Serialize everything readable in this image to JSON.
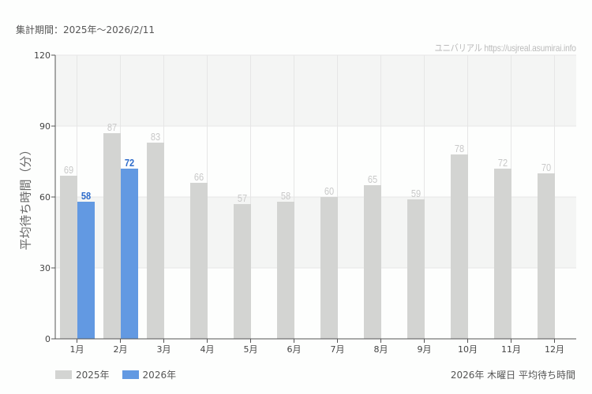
{
  "header": {
    "period": "集計期間：2025年～2026/2/11",
    "credit": "ユニバリアル  https://usjreal.asumirai.info"
  },
  "footer": {
    "title": "2026年 木曜日 平均待ち時間"
  },
  "legend": [
    {
      "label": "2025年",
      "color": "#d3d4d2"
    },
    {
      "label": "2026年",
      "color": "#6299e2"
    }
  ],
  "colors": {
    "series_2025": "#d3d4d2",
    "series_2026": "#6299e2",
    "label_2025": "#c8c8c8",
    "label_2026": "#2e6ccb",
    "band": "#f4f5f4",
    "grid": "#e6e6e6",
    "axis": "#555555"
  },
  "chart_data": {
    "type": "bar",
    "title": "2026年 木曜日 平均待ち時間",
    "subtitle": "集計期間：2025年～2026/2/11",
    "xlabel": "",
    "ylabel": "平均待ち時間（分）",
    "ylim": [
      0,
      120
    ],
    "yticks": [
      0,
      30,
      60,
      90,
      120
    ],
    "categories": [
      "1月",
      "2月",
      "3月",
      "4月",
      "5月",
      "6月",
      "7月",
      "8月",
      "9月",
      "10月",
      "11月",
      "12月"
    ],
    "series": [
      {
        "name": "2025年",
        "values": [
          69,
          87,
          83,
          66,
          57,
          58,
          60,
          65,
          59,
          78,
          72,
          70
        ]
      },
      {
        "name": "2026年",
        "values": [
          58,
          72,
          null,
          null,
          null,
          null,
          null,
          null,
          null,
          null,
          null,
          null
        ]
      }
    ],
    "grid": true,
    "legend_position": "bottom-left",
    "data_labels": true
  }
}
